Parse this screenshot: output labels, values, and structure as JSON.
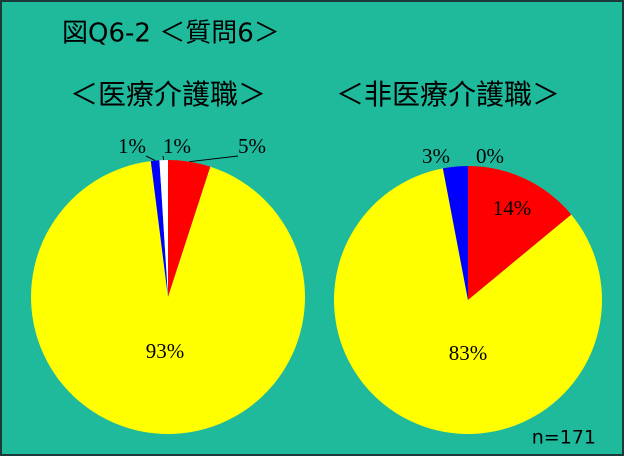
{
  "title": "図Q6-2 ＜質問6＞",
  "note": "n=171",
  "chart_data": [
    {
      "type": "pie",
      "title": "＜医療介護職＞",
      "values": [
        5,
        93,
        1,
        1
      ],
      "value_labels": [
        "5%",
        "93%",
        "1%",
        "1%"
      ],
      "colors": [
        "#ff0000",
        "#ffff00",
        "#0000ff",
        "#ffffff"
      ]
    },
    {
      "type": "pie",
      "title": "＜非医療介護職＞",
      "values": [
        14,
        83,
        3,
        0
      ],
      "value_labels": [
        "14%",
        "83%",
        "3%",
        "0%"
      ],
      "colors": [
        "#ff0000",
        "#ffff00",
        "#0000ff",
        "#ffffff"
      ]
    }
  ]
}
